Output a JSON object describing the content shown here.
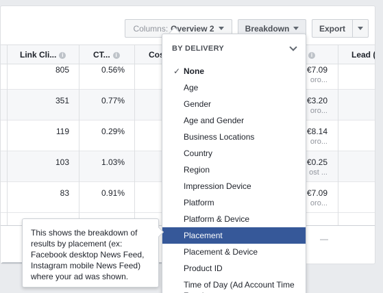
{
  "toolbar": {
    "columns_prefix": "Columns:",
    "columns_value": "Overview 2",
    "breakdown_label": "Breakdown",
    "export_label": "Export"
  },
  "table": {
    "headers": [
      "Link Cli...",
      "CT...",
      "Cos",
      "Lead ("
    ],
    "rows": [
      {
        "link_clicks": "805",
        "ctr": "0.56%",
        "cost": "€7.09",
        "cost_sub": "oro..."
      },
      {
        "link_clicks": "351",
        "ctr": "0.77%",
        "cost": "€3.20",
        "cost_sub": "oro..."
      },
      {
        "link_clicks": "119",
        "ctr": "0.29%",
        "cost": "€8.14",
        "cost_sub": "oro..."
      },
      {
        "link_clicks": "103",
        "ctr": "1.03%",
        "cost": "€0.25",
        "cost_sub": "ost ..."
      },
      {
        "link_clicks": "83",
        "ctr": "0.91%",
        "cost": "€7.09",
        "cost_sub": "oro..."
      }
    ],
    "totals_dash": "—"
  },
  "menu": {
    "header": "BY DELIVERY",
    "check_glyph": "✓",
    "items": [
      "None",
      "Age",
      "Gender",
      "Age and Gender",
      "Business Locations",
      "Country",
      "Region",
      "Impression Device",
      "Platform",
      "Platform & Device",
      "Placement",
      "Placement & Device",
      "Product ID",
      "Time of Day (Ad Account Time Zone)"
    ]
  },
  "tooltip": {
    "text": "This shows the breakdown of results by placement (ex: Facebook desktop News Feed, Instagram mobile News Feed) where your ad was shown."
  }
}
